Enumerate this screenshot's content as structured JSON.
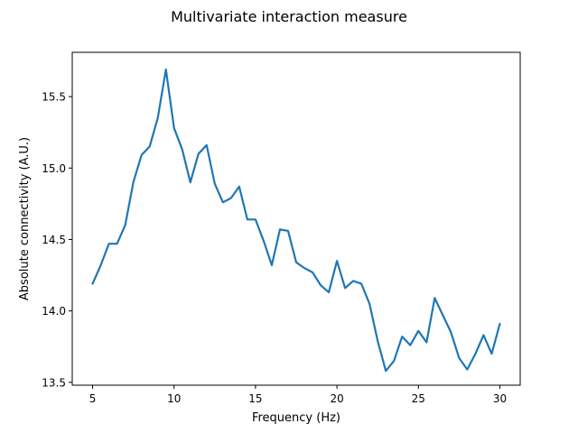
{
  "chart_data": {
    "type": "line",
    "title": "Multivariate interaction measure",
    "xlabel": "Frequency (Hz)",
    "ylabel": "Absolute connectivity (A.U.)",
    "xlim": [
      3.75,
      31.25
    ],
    "ylim": [
      13.48,
      15.81
    ],
    "xticks": [
      5,
      10,
      15,
      20,
      25,
      30
    ],
    "yticks": [
      13.5,
      14.0,
      14.5,
      15.0,
      15.5
    ],
    "xtick_labels": [
      "5",
      "10",
      "15",
      "20",
      "25",
      "30"
    ],
    "ytick_labels": [
      "13.5",
      "14.0",
      "14.5",
      "15.0",
      "15.5"
    ],
    "grid": false,
    "color": "#1f77b4",
    "x": [
      5,
      5.5,
      6,
      6.5,
      7,
      7.5,
      8,
      8.5,
      9,
      9.5,
      10,
      10.5,
      11,
      11.5,
      12,
      12.5,
      13,
      13.5,
      14,
      14.5,
      15,
      15.5,
      16,
      16.5,
      17,
      17.5,
      18,
      18.5,
      19,
      19.5,
      20,
      20.5,
      21,
      21.5,
      22,
      22.5,
      23,
      23.5,
      24,
      24.5,
      25,
      25.5,
      26,
      26.5,
      27,
      27.5,
      28,
      28.5,
      29,
      29.5,
      30
    ],
    "y": [
      14.19,
      14.32,
      14.47,
      14.47,
      14.6,
      14.9,
      15.09,
      15.15,
      15.35,
      15.69,
      15.28,
      15.13,
      14.9,
      15.1,
      15.16,
      14.89,
      14.76,
      14.79,
      14.87,
      14.64,
      14.64,
      14.49,
      14.32,
      14.57,
      14.56,
      14.34,
      14.3,
      14.27,
      14.18,
      14.13,
      14.35,
      14.16,
      14.21,
      14.19,
      14.05,
      13.79,
      13.58,
      13.65,
      13.82,
      13.76,
      13.86,
      13.78,
      14.09,
      13.97,
      13.85,
      13.67,
      13.59,
      13.7,
      13.83,
      13.7,
      13.91
    ]
  }
}
